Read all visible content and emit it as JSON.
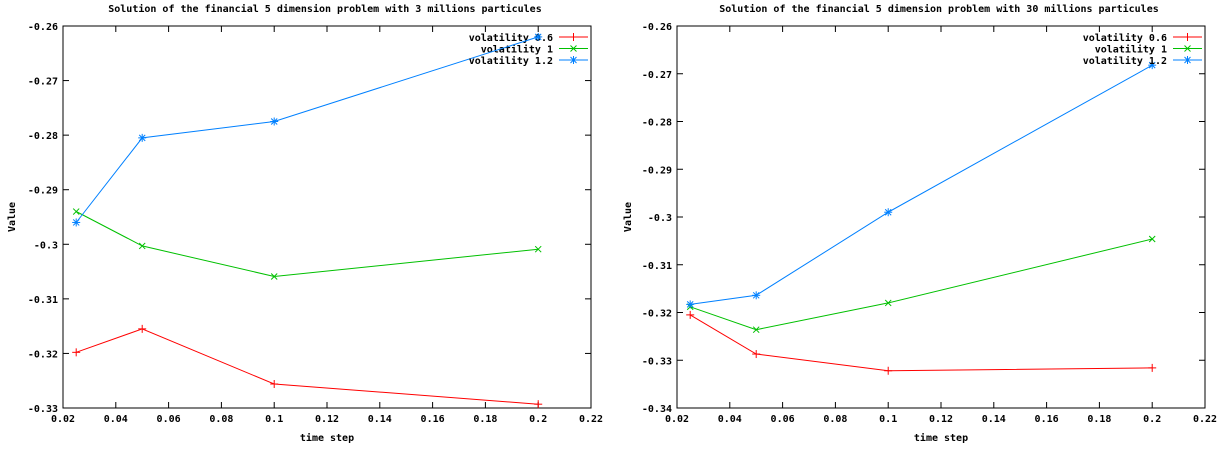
{
  "chart_data": [
    {
      "type": "line",
      "title": "Solution of the financial 5 dimension problem with 3 millions particules",
      "xlabel": "time step",
      "ylabel": "Value",
      "xlim": [
        0.02,
        0.22
      ],
      "ylim": [
        -0.33,
        -0.26
      ],
      "xticks": [
        "0.02",
        "0.04",
        "0.06",
        "0.08",
        "0.1",
        "0.12",
        "0.14",
        "0.16",
        "0.18",
        "0.2",
        "0.22"
      ],
      "yticks": [
        "-0.26",
        "-0.27",
        "-0.28",
        "-0.29",
        "-0.3",
        "-0.31",
        "-0.32",
        "-0.33"
      ],
      "legend": "top-right",
      "x": [
        0.025,
        0.05,
        0.1,
        0.2
      ],
      "series": [
        {
          "name": "volatility 0.6",
          "color": "#ff0000",
          "marker": "plus",
          "values": [
            -0.3198,
            -0.3155,
            -0.3256,
            -0.3293
          ]
        },
        {
          "name": "volatility 1",
          "color": "#00c000",
          "marker": "cross",
          "values": [
            -0.294,
            -0.3003,
            -0.3059,
            -0.3009
          ]
        },
        {
          "name": "volatility 1.2",
          "color": "#0080ff",
          "marker": "star",
          "values": [
            -0.296,
            -0.2805,
            -0.2775,
            -0.262
          ]
        }
      ]
    },
    {
      "type": "line",
      "title": "Solution of the financial 5 dimension problem with 30 millions particules",
      "xlabel": "time step",
      "ylabel": "Value",
      "xlim": [
        0.02,
        0.22
      ],
      "ylim": [
        -0.34,
        -0.26
      ],
      "xticks": [
        "0.02",
        "0.04",
        "0.06",
        "0.08",
        "0.1",
        "0.12",
        "0.14",
        "0.16",
        "0.18",
        "0.2",
        "0.22"
      ],
      "yticks": [
        "-0.26",
        "-0.27",
        "-0.28",
        "-0.29",
        "-0.3",
        "-0.31",
        "-0.32",
        "-0.33",
        "-0.34"
      ],
      "legend": "top-right",
      "x": [
        0.025,
        0.05,
        0.1,
        0.2
      ],
      "series": [
        {
          "name": "volatility 0.6",
          "color": "#ff0000",
          "marker": "plus",
          "values": [
            -0.3205,
            -0.3287,
            -0.3322,
            -0.3316
          ]
        },
        {
          "name": "volatility 1",
          "color": "#00c000",
          "marker": "cross",
          "values": [
            -0.3188,
            -0.3236,
            -0.318,
            -0.3046
          ]
        },
        {
          "name": "volatility 1.2",
          "color": "#0080ff",
          "marker": "star",
          "values": [
            -0.3183,
            -0.3164,
            -0.299,
            -0.2682
          ]
        }
      ]
    }
  ]
}
